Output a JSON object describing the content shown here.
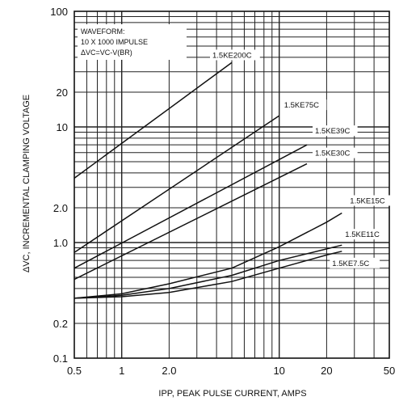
{
  "chart_data": {
    "type": "line",
    "xlabel": "IPP, PEAK PULSE CURRENT, AMPS",
    "ylabel": "ΔVC, INCREMENTAL CLAMPING VOLTAGE",
    "xscale": "log",
    "yscale": "log",
    "xlim": [
      0.5,
      50
    ],
    "ylim": [
      0.1,
      100
    ],
    "x_ticks": [
      "0.5",
      "1",
      "2.0",
      "10",
      "20",
      "50"
    ],
    "x_tick_values": [
      0.5,
      1,
      2,
      10,
      20,
      50
    ],
    "y_ticks": [
      "100",
      "20",
      "10",
      "2.0",
      "1.0",
      "0.2",
      "0.1"
    ],
    "y_tick_values": [
      100,
      20,
      10,
      2,
      1,
      0.2,
      0.1
    ],
    "grid": true,
    "annotation": {
      "lines": [
        "WAVEFORM:",
        "10 X 1000 IMPULSE",
        "ΔVC=VC-V(BR)"
      ]
    },
    "series": [
      {
        "name": "1.5KE200C",
        "x": [
          0.5,
          5.0
        ],
        "y": [
          3.6,
          36
        ]
      },
      {
        "name": "1.5KE75C",
        "x": [
          0.5,
          10.0
        ],
        "y": [
          0.82,
          12.5
        ]
      },
      {
        "name": "1.5KE39C",
        "x": [
          0.5,
          15.0
        ],
        "y": [
          0.6,
          7.0
        ]
      },
      {
        "name": "1.5KE30C",
        "x": [
          0.5,
          15.0
        ],
        "y": [
          0.48,
          4.8
        ]
      },
      {
        "name": "1.5KE15C",
        "x": [
          0.5,
          1,
          2,
          5,
          10,
          20,
          25
        ],
        "y": [
          0.33,
          0.36,
          0.44,
          0.6,
          0.92,
          1.5,
          1.8
        ]
      },
      {
        "name": "1.5KE11C",
        "x": [
          0.5,
          1,
          2,
          5,
          10,
          20,
          25
        ],
        "y": [
          0.33,
          0.35,
          0.4,
          0.52,
          0.7,
          0.88,
          0.95
        ]
      },
      {
        "name": "1.5KE7.5C",
        "x": [
          0.5,
          1,
          2,
          5,
          10,
          20,
          25
        ],
        "y": [
          0.33,
          0.34,
          0.37,
          0.46,
          0.6,
          0.78,
          0.84
        ]
      }
    ]
  }
}
